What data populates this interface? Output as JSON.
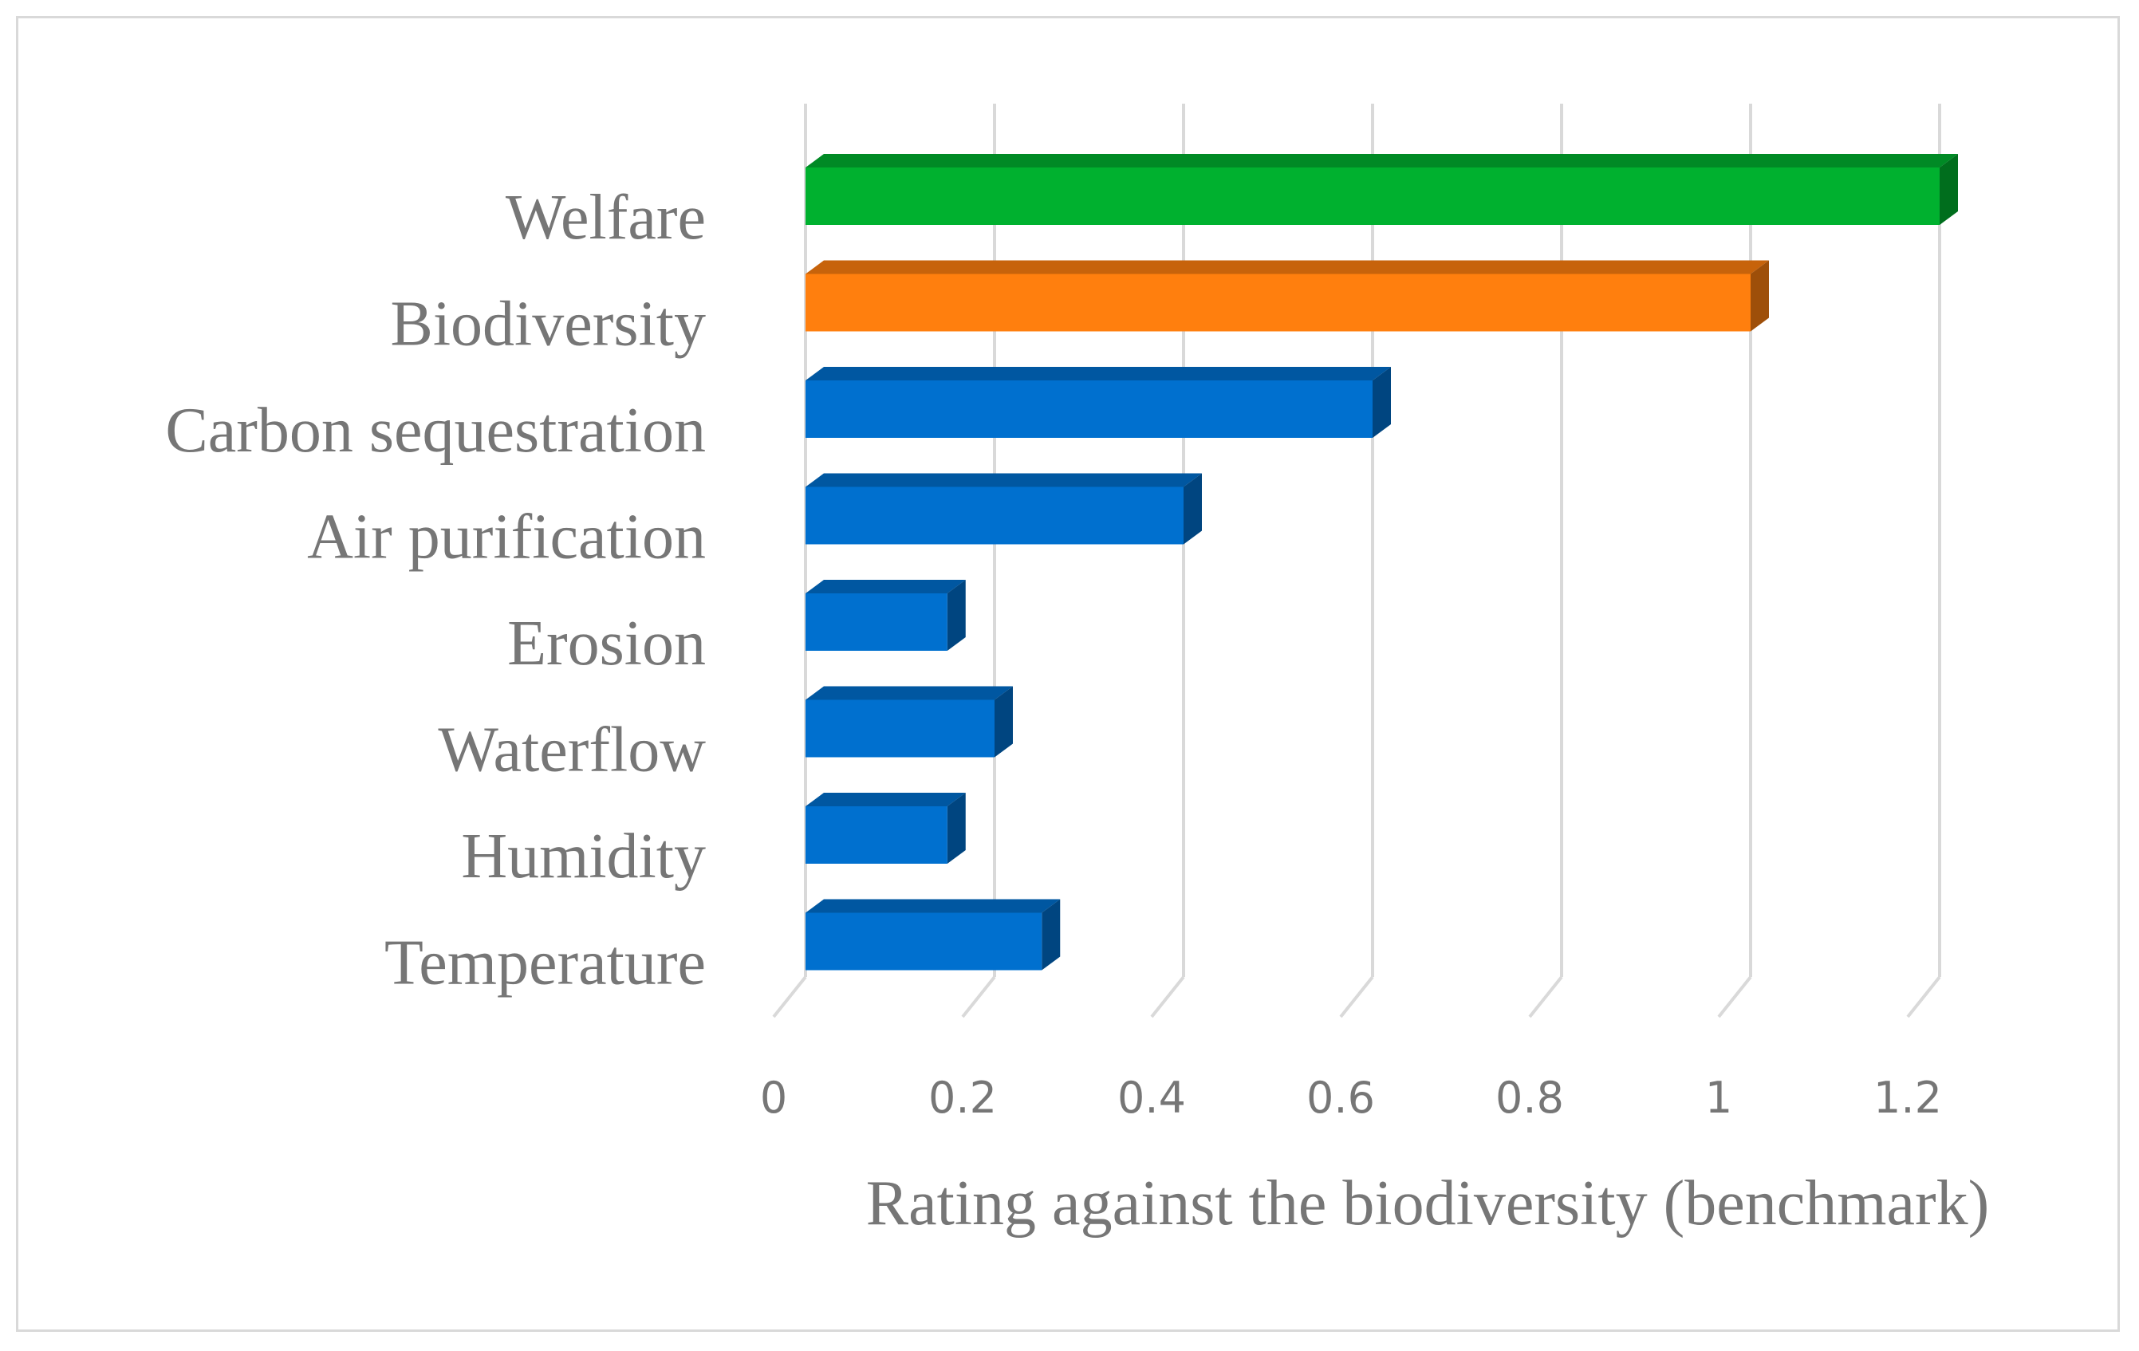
{
  "chart_data": {
    "type": "bar",
    "orientation": "horizontal",
    "style": "3d",
    "title": "",
    "xlabel": "Rating against the biodiversity (benchmark)",
    "ylabel": "",
    "xlim": [
      0,
      1.2
    ],
    "xticks": [
      "0",
      "0.2",
      "0.4",
      "0.6",
      "0.8",
      "1",
      "1.2"
    ],
    "grid": true,
    "legend": "none",
    "categories": [
      "Welfare",
      "Biodiversity",
      "Carbon sequestration",
      "Air purification",
      "Erosion",
      "Waterflow",
      "Humidity",
      "Temperature"
    ],
    "values": [
      1.2,
      1.0,
      0.6,
      0.4,
      0.15,
      0.2,
      0.15,
      0.25
    ],
    "colors": {
      "Welfare": "#00b12f",
      "Biodiversity": "#ff7f0e",
      "default": "#0070cf"
    }
  }
}
